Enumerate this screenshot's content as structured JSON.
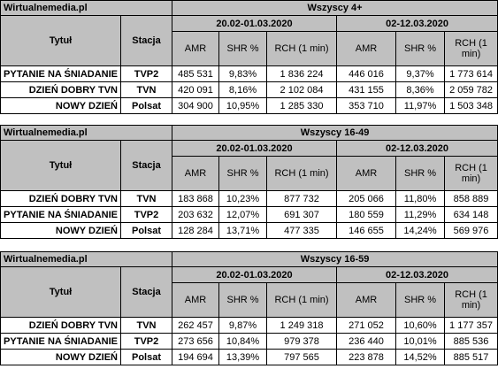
{
  "tables": [
    {
      "source": "Wirtualnemedia.pl",
      "audience": "Wszyscy 4+",
      "col_title": "Tytuł",
      "col_channel": "Stacja",
      "periods": [
        "20.02-01.03.2020",
        "02-12.03.2020"
      ],
      "metrics": [
        "AMR",
        "SHR %",
        "RCH (1 min)"
      ],
      "rows": [
        {
          "title": "PYTANIE NA ŚNIADANIE",
          "channel": "TVP2",
          "p1": [
            "485 531",
            "9,83%",
            "1 836 224"
          ],
          "p2": [
            "446 016",
            "9,37%",
            "1 773 614"
          ]
        },
        {
          "title": "DZIEŃ DOBRY TVN",
          "channel": "TVN",
          "p1": [
            "420 091",
            "8,16%",
            "2 102 084"
          ],
          "p2": [
            "431 155",
            "8,36%",
            "2 059 782"
          ]
        },
        {
          "title": "NOWY DZIEŃ",
          "channel": "Polsat",
          "p1": [
            "304 900",
            "10,95%",
            "1 285 330"
          ],
          "p2": [
            "353 710",
            "11,97%",
            "1 503 348"
          ]
        }
      ]
    },
    {
      "source": "Wirtualnemedia.pl",
      "audience": "Wszyscy 16-49",
      "col_title": "Tytuł",
      "col_channel": "Stacja",
      "periods": [
        "20.02-01.03.2020",
        "02-12.03.2020"
      ],
      "metrics": [
        "AMR",
        "SHR %",
        "RCH (1 min)"
      ],
      "rows": [
        {
          "title": "DZIEŃ DOBRY TVN",
          "channel": "TVN",
          "p1": [
            "183 868",
            "10,23%",
            "877 732"
          ],
          "p2": [
            "205 066",
            "11,80%",
            "858 889"
          ]
        },
        {
          "title": "PYTANIE NA ŚNIADANIE",
          "channel": "TVP2",
          "p1": [
            "203 632",
            "12,07%",
            "691 307"
          ],
          "p2": [
            "180 559",
            "11,29%",
            "634 148"
          ]
        },
        {
          "title": "NOWY DZIEŃ",
          "channel": "Polsat",
          "p1": [
            "128 284",
            "13,71%",
            "477 335"
          ],
          "p2": [
            "146 655",
            "14,24%",
            "569 976"
          ]
        }
      ]
    },
    {
      "source": "Wirtualnemedia.pl",
      "audience": "Wszyscy 16-59",
      "col_title": "Tytuł",
      "col_channel": "Stacja",
      "periods": [
        "20.02-01.03.2020",
        "02-12.03.2020"
      ],
      "metrics": [
        "AMR",
        "SHR %",
        "RCH (1 min)"
      ],
      "rows": [
        {
          "title": "DZIEŃ DOBRY TVN",
          "channel": "TVN",
          "p1": [
            "262 457",
            "9,87%",
            "1 249 318"
          ],
          "p2": [
            "271 052",
            "10,60%",
            "1 177 357"
          ]
        },
        {
          "title": "PYTANIE NA ŚNIADANIE",
          "channel": "TVP2",
          "p1": [
            "273 656",
            "10,84%",
            "979 378"
          ],
          "p2": [
            "236 440",
            "10,01%",
            "885 536"
          ]
        },
        {
          "title": "NOWY DZIEŃ",
          "channel": "Polsat",
          "p1": [
            "194 694",
            "13,39%",
            "797 565"
          ],
          "p2": [
            "223 878",
            "14,52%",
            "885 517"
          ]
        }
      ]
    }
  ]
}
